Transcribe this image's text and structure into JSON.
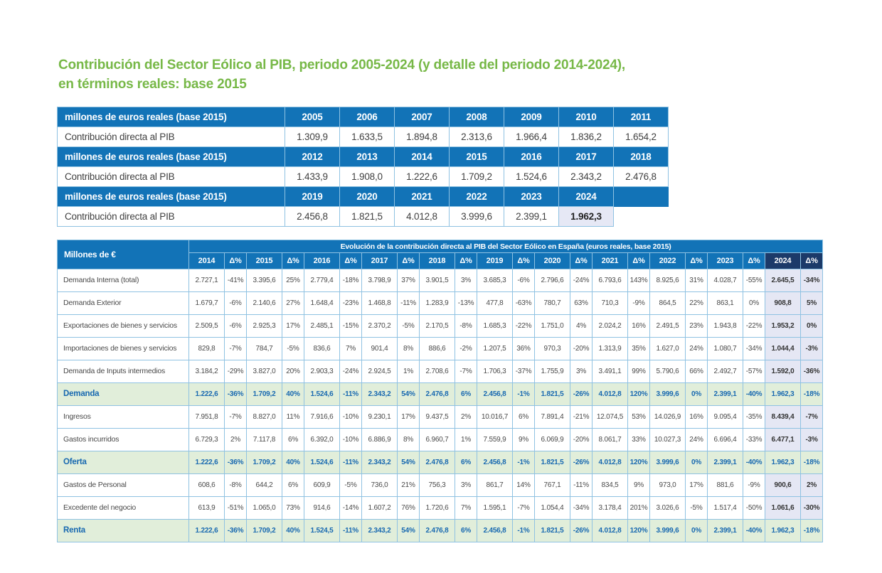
{
  "title": {
    "line1": "Contribución del Sector Eólico al PIB, periodo 2005-2024 (y detalle del periodo 2014-2024),",
    "line2": "en términos reales: base 2015"
  },
  "colors": {
    "title_green": "#77b847",
    "header_blue": "#1273b7",
    "highlight_navy": "#1c3a69",
    "total_row_green": "#e1eeda",
    "col2024_lavender": "#e5e7f4",
    "border_light_blue": "#8fc2e2",
    "total_text_blue": "#1768b0"
  },
  "table1": {
    "header_label": "millones de euros reales (base 2015)",
    "row_label": "Contribución directa al PIB",
    "highlight_year": "2024",
    "groups": [
      {
        "years": [
          "2005",
          "2006",
          "2007",
          "2008",
          "2009",
          "2010",
          "2011"
        ],
        "values": [
          "1.309,9",
          "1.633,5",
          "1.894,8",
          "2.313,6",
          "1.966,4",
          "1.836,2",
          "1.654,2"
        ]
      },
      {
        "years": [
          "2012",
          "2013",
          "2014",
          "2015",
          "2016",
          "2017",
          "2018"
        ],
        "values": [
          "1.433,9",
          "1.908,0",
          "1.222,6",
          "1.709,2",
          "1.524,6",
          "2.343,2",
          "2.476,8"
        ]
      },
      {
        "years": [
          "2019",
          "2020",
          "2021",
          "2022",
          "2023",
          "2024"
        ],
        "values": [
          "2.456,8",
          "1.821,5",
          "4.012,8",
          "3.999,6",
          "2.399,1",
          "1.962,3"
        ]
      }
    ]
  },
  "table2": {
    "col_label": "Millones de €",
    "span_title": "Evolución de la contribución directa al PIB del Sector Eólico en España (euros reales, base 2015)",
    "delta_label": "Δ%",
    "highlight_year": "2024",
    "years": [
      "2014",
      "2015",
      "2016",
      "2017",
      "2018",
      "2019",
      "2020",
      "2021",
      "2022",
      "2023",
      "2024"
    ],
    "rows": [
      {
        "label": "Demanda Interna (total)",
        "type": "normal",
        "cells": [
          "2.727,1",
          "-41%",
          "3.395,6",
          "25%",
          "2.779,4",
          "-18%",
          "3.798,9",
          "37%",
          "3.901,5",
          "3%",
          "3.685,3",
          "-6%",
          "2.796,6",
          "-24%",
          "6.793,6",
          "143%",
          "8.925,6",
          "31%",
          "4.028,7",
          "-55%",
          "2.645,5",
          "-34%"
        ]
      },
      {
        "label": "Demanda Exterior",
        "type": "normal",
        "cells": [
          "1.679,7",
          "-6%",
          "2.140,6",
          "27%",
          "1.648,4",
          "-23%",
          "1.468,8",
          "-11%",
          "1.283,9",
          "-13%",
          "477,8",
          "-63%",
          "780,7",
          "63%",
          "710,3",
          "-9%",
          "864,5",
          "22%",
          "863,1",
          "0%",
          "908,8",
          "5%"
        ]
      },
      {
        "label": "Exportaciones de bienes y servicios",
        "type": "normal",
        "cells": [
          "2.509,5",
          "-6%",
          "2.925,3",
          "17%",
          "2.485,1",
          "-15%",
          "2.370,2",
          "-5%",
          "2.170,5",
          "-8%",
          "1.685,3",
          "-22%",
          "1.751,0",
          "4%",
          "2.024,2",
          "16%",
          "2.491,5",
          "23%",
          "1.943,8",
          "-22%",
          "1.953,2",
          "0%"
        ]
      },
      {
        "label": "Importaciones de bienes y servicios",
        "type": "normal",
        "cells": [
          "829,8",
          "-7%",
          "784,7",
          "-5%",
          "836,6",
          "7%",
          "901,4",
          "8%",
          "886,6",
          "-2%",
          "1.207,5",
          "36%",
          "970,3",
          "-20%",
          "1.313,9",
          "35%",
          "1.627,0",
          "24%",
          "1.080,7",
          "-34%",
          "1.044,4",
          "-3%"
        ]
      },
      {
        "label": "Demanda de Inputs intermedios",
        "type": "normal",
        "cells": [
          "3.184,2",
          "-29%",
          "3.827,0",
          "20%",
          "2.903,3",
          "-24%",
          "2.924,5",
          "1%",
          "2.708,6",
          "-7%",
          "1.706,3",
          "-37%",
          "1.755,9",
          "3%",
          "3.491,1",
          "99%",
          "5.790,6",
          "66%",
          "2.492,7",
          "-57%",
          "1.592,0",
          "-36%"
        ]
      },
      {
        "label": "Demanda",
        "type": "total",
        "cells": [
          "1.222,6",
          "-36%",
          "1.709,2",
          "40%",
          "1.524,6",
          "-11%",
          "2.343,2",
          "54%",
          "2.476,8",
          "6%",
          "2.456,8",
          "-1%",
          "1.821,5",
          "-26%",
          "4.012,8",
          "120%",
          "3.999,6",
          "0%",
          "2.399,1",
          "-40%",
          "1.962,3",
          "-18%"
        ]
      },
      {
        "label": "Ingresos",
        "type": "normal",
        "cells": [
          "7.951,8",
          "-7%",
          "8.827,0",
          "11%",
          "7.916,6",
          "-10%",
          "9.230,1",
          "17%",
          "9.437,5",
          "2%",
          "10.016,7",
          "6%",
          "7.891,4",
          "-21%",
          "12.074,5",
          "53%",
          "14.026,9",
          "16%",
          "9.095,4",
          "-35%",
          "8.439,4",
          "-7%"
        ]
      },
      {
        "label": "Gastos incurridos",
        "type": "normal",
        "cells": [
          "6.729,3",
          "2%",
          "7.117,8",
          "6%",
          "6.392,0",
          "-10%",
          "6.886,9",
          "8%",
          "6.960,7",
          "1%",
          "7.559,9",
          "9%",
          "6.069,9",
          "-20%",
          "8.061,7",
          "33%",
          "10.027,3",
          "24%",
          "6.696,4",
          "-33%",
          "6.477,1",
          "-3%"
        ]
      },
      {
        "label": "Oferta",
        "type": "total",
        "cells": [
          "1.222,6",
          "-36%",
          "1.709,2",
          "40%",
          "1.524,6",
          "-11%",
          "2.343,2",
          "54%",
          "2.476,8",
          "6%",
          "2.456,8",
          "-1%",
          "1.821,5",
          "-26%",
          "4.012,8",
          "120%",
          "3.999,6",
          "0%",
          "2.399,1",
          "-40%",
          "1.962,3",
          "-18%"
        ]
      },
      {
        "label": "Gastos de Personal",
        "type": "normal",
        "cells": [
          "608,6",
          "-8%",
          "644,2",
          "6%",
          "609,9",
          "-5%",
          "736,0",
          "21%",
          "756,3",
          "3%",
          "861,7",
          "14%",
          "767,1",
          "-11%",
          "834,5",
          "9%",
          "973,0",
          "17%",
          "881,6",
          "-9%",
          "900,6",
          "2%"
        ]
      },
      {
        "label": "Excedente del negocio",
        "type": "normal",
        "cells": [
          "613,9",
          "-51%",
          "1.065,0",
          "73%",
          "914,6",
          "-14%",
          "1.607,2",
          "76%",
          "1.720,6",
          "7%",
          "1.595,1",
          "-7%",
          "1.054,4",
          "-34%",
          "3.178,4",
          "201%",
          "3.026,6",
          "-5%",
          "1.517,4",
          "-50%",
          "1.061,6",
          "-30%"
        ]
      },
      {
        "label": "Renta",
        "type": "total",
        "cells": [
          "1.222,6",
          "-36%",
          "1.709,2",
          "40%",
          "1.524,5",
          "-11%",
          "2.343,2",
          "54%",
          "2.476,8",
          "6%",
          "2.456,8",
          "-1%",
          "1.821,5",
          "-26%",
          "4.012,8",
          "120%",
          "3.999,6",
          "0%",
          "2.399,1",
          "-40%",
          "1.962,3",
          "-18%"
        ]
      }
    ]
  }
}
